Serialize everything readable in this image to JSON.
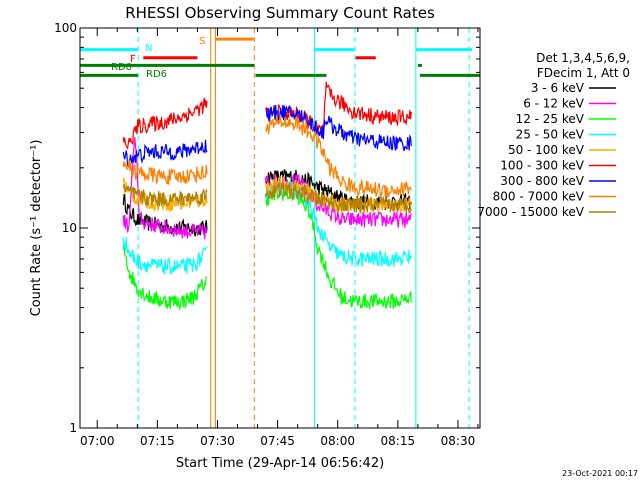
{
  "chart_data": {
    "type": "line",
    "title": "RHESSI Observing Summary Count Rates",
    "xlabel": "Start Time (29-Apr-14 06:56:42)",
    "ylabel": "Count Rate (s⁻¹ detector⁻¹)",
    "y_scale": "log",
    "ylim": [
      1,
      100
    ],
    "yticks": [
      {
        "value": 1,
        "label": "1"
      },
      {
        "value": 10,
        "label": "10"
      },
      {
        "value": 100,
        "label": "100"
      }
    ],
    "xlim_min": [
      -4.3,
      95.5
    ],
    "xticks": [
      {
        "value": 0,
        "label": "07:00"
      },
      {
        "value": 15,
        "label": "07:15"
      },
      {
        "value": 30,
        "label": "07:30"
      },
      {
        "value": 45,
        "label": "07:45"
      },
      {
        "value": 60,
        "label": "08:00"
      },
      {
        "value": 75,
        "label": "08:15"
      },
      {
        "value": 90,
        "label": "08:30"
      }
    ],
    "grid": false,
    "legend_position": "right",
    "legend_header": [
      "Det 1,3,4,5,6,9,",
      "FDecim 1, Att 0"
    ],
    "footer_date": "23-Oct-2021 00:17",
    "series": [
      {
        "name": "3 - 6 keV",
        "color": "#000000",
        "segments": [
          [
            [
              6.5,
              14
            ],
            [
              8,
              12
            ],
            [
              10,
              11
            ],
            [
              13,
              10.5
            ],
            [
              17,
              10.2
            ],
            [
              21,
              10
            ],
            [
              24,
              10
            ],
            [
              27.5,
              10
            ]
          ],
          [
            [
              42,
              18
            ],
            [
              46,
              18
            ],
            [
              50,
              18
            ],
            [
              53,
              17
            ],
            [
              55,
              16
            ],
            [
              58,
              15
            ],
            [
              61,
              14
            ],
            [
              64,
              13.5
            ],
            [
              70,
              13.5
            ],
            [
              75,
              13.5
            ],
            [
              78.5,
              13.5
            ]
          ]
        ]
      },
      {
        "name": "6 - 12 keV",
        "color": "#ff00ff",
        "segments": [
          [
            [
              6.5,
              11
            ],
            [
              8,
              10
            ],
            [
              9.5,
              28
            ],
            [
              10.5,
              11
            ],
            [
              13,
              10.5
            ],
            [
              17,
              10
            ],
            [
              21,
              9.7
            ],
            [
              24,
              9.6
            ],
            [
              27.5,
              9.5
            ]
          ],
          [
            [
              42,
              17
            ],
            [
              46,
              17
            ],
            [
              50,
              17
            ],
            [
              53,
              15
            ],
            [
              55,
              13
            ],
            [
              58,
              12
            ],
            [
              61,
              11
            ],
            [
              64,
              11
            ],
            [
              70,
              11
            ],
            [
              75,
              11
            ],
            [
              78.5,
              11
            ]
          ]
        ]
      },
      {
        "name": "12 - 25 keV",
        "color": "#00ff00",
        "segments": [
          [
            [
              6.5,
              8
            ],
            [
              8,
              6
            ],
            [
              10,
              5
            ],
            [
              13,
              4.5
            ],
            [
              17,
              4.3
            ],
            [
              21,
              4.3
            ],
            [
              24,
              4.5
            ],
            [
              27.5,
              5.5
            ]
          ],
          [
            [
              42,
              14
            ],
            [
              46,
              15
            ],
            [
              50,
              14.5
            ],
            [
              53,
              12
            ],
            [
              55,
              8
            ],
            [
              58,
              5.5
            ],
            [
              61,
              4.5
            ],
            [
              64,
              4.3
            ],
            [
              70,
              4.3
            ],
            [
              75,
              4.3
            ],
            [
              78.5,
              4.5
            ]
          ]
        ]
      },
      {
        "name": "25 - 50 keV",
        "color": "#00ffff",
        "segments": [
          [
            [
              6.5,
              9
            ],
            [
              8,
              7.5
            ],
            [
              10,
              6.8
            ],
            [
              13,
              6.5
            ],
            [
              17,
              6.4
            ],
            [
              21,
              6.4
            ],
            [
              24,
              6.5
            ],
            [
              27.5,
              7.5
            ]
          ],
          [
            [
              42,
              15
            ],
            [
              46,
              16
            ],
            [
              50,
              15.5
            ],
            [
              53,
              13
            ],
            [
              55,
              10
            ],
            [
              58,
              8
            ],
            [
              61,
              7.2
            ],
            [
              64,
              7
            ],
            [
              70,
              7
            ],
            [
              75,
              7
            ],
            [
              78.5,
              7.2
            ]
          ]
        ]
      },
      {
        "name": "50 - 100 keV",
        "color": "#ffaa00",
        "segments": [
          [
            [
              6.5,
              17
            ],
            [
              8,
              15
            ],
            [
              10,
              14
            ],
            [
              13,
              13.5
            ],
            [
              17,
              13.3
            ],
            [
              21,
              13.3
            ],
            [
              24,
              13.5
            ],
            [
              27.5,
              14
            ]
          ],
          [
            [
              42,
              16
            ],
            [
              46,
              16.5
            ],
            [
              50,
              16
            ],
            [
              53,
              15
            ],
            [
              55,
              14
            ],
            [
              58,
              13.5
            ],
            [
              61,
              13
            ],
            [
              64,
              13
            ],
            [
              70,
              13
            ],
            [
              75,
              13
            ],
            [
              78.5,
              13.2
            ]
          ]
        ]
      },
      {
        "name": "100 - 300 keV",
        "color": "#ff0000",
        "segments": [
          [
            [
              6.5,
              27
            ],
            [
              8,
              26
            ],
            [
              10,
              32
            ],
            [
              13,
              33
            ],
            [
              17,
              34
            ],
            [
              21,
              36
            ],
            [
              24,
              38
            ],
            [
              27.5,
              42
            ]
          ],
          [
            [
              42,
              37
            ],
            [
              46,
              38
            ],
            [
              50,
              37
            ],
            [
              53,
              34
            ],
            [
              55,
              31
            ],
            [
              56.5,
              30
            ],
            [
              57,
              50
            ],
            [
              58,
              46
            ],
            [
              61,
              42
            ],
            [
              64,
              38
            ],
            [
              70,
              36
            ],
            [
              75,
              35.5
            ],
            [
              78.5,
              36
            ]
          ]
        ]
      },
      {
        "name": "300 - 800 keV",
        "color": "#0000ff",
        "segments": [
          [
            [
              6.5,
              23
            ],
            [
              8,
              22
            ],
            [
              10,
              23
            ],
            [
              13,
              24
            ],
            [
              17,
              24
            ],
            [
              21,
              24
            ],
            [
              24,
              25
            ],
            [
              27.5,
              26
            ]
          ],
          [
            [
              42,
              37
            ],
            [
              46,
              38
            ],
            [
              50,
              37
            ],
            [
              53,
              34
            ],
            [
              55,
              31
            ],
            [
              56.5,
              30
            ],
            [
              57,
              36
            ],
            [
              58,
              33
            ],
            [
              61,
              30
            ],
            [
              64,
              28
            ],
            [
              70,
              27
            ],
            [
              75,
              26.5
            ],
            [
              78.5,
              26.5
            ]
          ]
        ]
      },
      {
        "name": "800 - 7000 keV",
        "color": "#ff8000",
        "segments": [
          [
            [
              6.5,
              22
            ],
            [
              8,
              20
            ],
            [
              10,
              19
            ],
            [
              13,
              18.5
            ],
            [
              17,
              18
            ],
            [
              21,
              18
            ],
            [
              24,
              18.5
            ],
            [
              27.5,
              19
            ]
          ],
          [
            [
              42,
              32
            ],
            [
              46,
              34
            ],
            [
              50,
              33
            ],
            [
              53,
              30
            ],
            [
              55,
              27
            ],
            [
              58,
              20
            ],
            [
              61,
              17
            ],
            [
              64,
              16
            ],
            [
              70,
              15.5
            ],
            [
              75,
              15.5
            ],
            [
              78.5,
              16
            ]
          ]
        ]
      },
      {
        "name": "7000 - 15000 keV",
        "color": "#b08000",
        "segments": [
          [
            [
              6.5,
              16
            ],
            [
              8,
              15
            ],
            [
              10,
              14.5
            ],
            [
              13,
              14
            ],
            [
              17,
              14
            ],
            [
              21,
              14
            ],
            [
              24,
              14.2
            ],
            [
              27.5,
              14.5
            ]
          ],
          [
            [
              42,
              15
            ],
            [
              46,
              15.5
            ],
            [
              50,
              15
            ],
            [
              53,
              14.5
            ],
            [
              55,
              14
            ],
            [
              58,
              13.5
            ],
            [
              61,
              13
            ],
            [
              64,
              13
            ],
            [
              70,
              13
            ],
            [
              75,
              13
            ],
            [
              78.5,
              13
            ]
          ]
        ]
      }
    ],
    "vlines": [
      {
        "x": -4.3,
        "color": "#00ffff",
        "style": "solid"
      },
      {
        "x": 10.2,
        "color": "#00ffff",
        "style": "dashed"
      },
      {
        "x": 28.3,
        "color": "#ff8000",
        "style": "solid"
      },
      {
        "x": 29.5,
        "color": "#ff8000",
        "style": "solid"
      },
      {
        "x": 39.2,
        "color": "#ff8000",
        "style": "dashed"
      },
      {
        "x": 54.2,
        "color": "#00ffff",
        "style": "solid"
      },
      {
        "x": 64.3,
        "color": "#00ffff",
        "style": "dashed"
      },
      {
        "x": 79.5,
        "color": "#00ffff",
        "style": "solid"
      },
      {
        "x": 92.8,
        "color": "#00ffff",
        "style": "dashed"
      }
    ],
    "flags": [
      {
        "label": "N",
        "color": "#00ffff",
        "y": 78,
        "segments": [
          [
            -4.3,
            10.2
          ],
          [
            54.2,
            64.3
          ],
          [
            79.5,
            93.5
          ]
        ]
      },
      {
        "label": "F",
        "color": "#ff0000",
        "y": 71,
        "segments": [
          [
            11.5,
            25
          ],
          [
            64.5,
            69.5
          ]
        ]
      },
      {
        "label": "S",
        "color": "#ff8000",
        "y": 88,
        "segments": [
          [
            29.5,
            39
          ]
        ]
      },
      {
        "label": "RD0",
        "color": "#008000",
        "y": 65,
        "segments": [
          [
            -4.3,
            10.2
          ],
          [
            10.2,
            39.2
          ],
          [
            80,
            81
          ]
        ]
      },
      {
        "label": "RD6",
        "color": "#008000",
        "y": 58,
        "segments": [
          [
            -4.3,
            10.2
          ],
          [
            39.5,
            57.2
          ],
          [
            80.5,
            95.5
          ]
        ]
      }
    ]
  }
}
